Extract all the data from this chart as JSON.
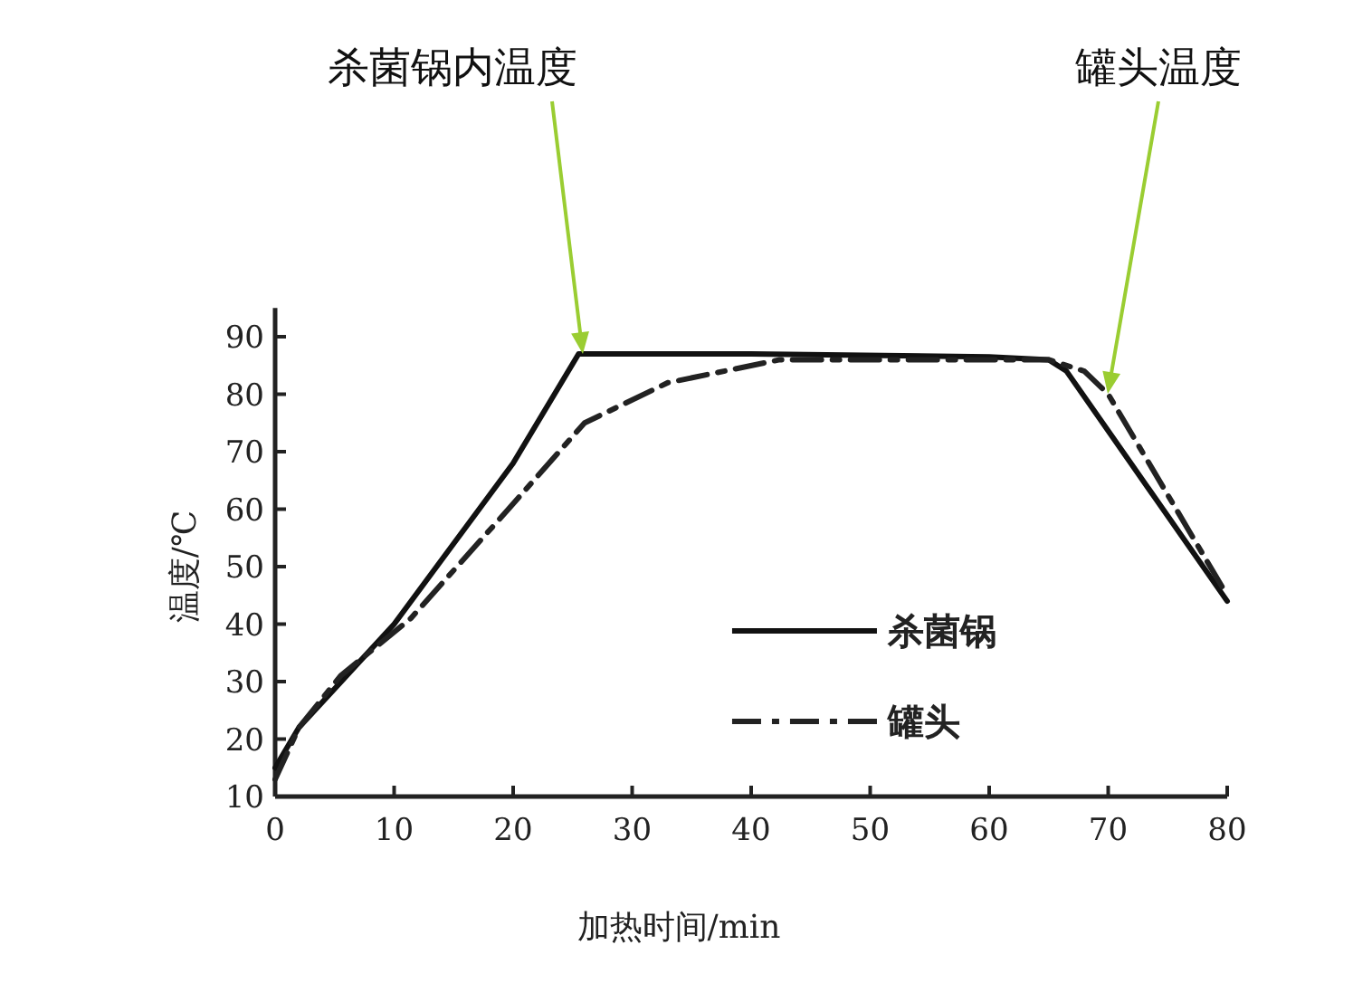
{
  "chart_data": {
    "type": "line",
    "xlabel": "加热时间/min",
    "ylabel": "温度/℃",
    "x": [
      0,
      2,
      10,
      20,
      25.5,
      40,
      60,
      65,
      66.5,
      80
    ],
    "xlim": [
      0,
      80
    ],
    "ylim": [
      10,
      95
    ],
    "xticks": [
      0,
      10,
      20,
      30,
      40,
      50,
      60,
      70,
      80
    ],
    "yticks": [
      10,
      20,
      30,
      40,
      50,
      60,
      70,
      80,
      90
    ],
    "legend": "right",
    "grid": false,
    "series": [
      {
        "name": "杀菌锅",
        "color": "#111111",
        "line_style": "solid",
        "values": [
          15,
          22,
          40,
          68,
          87,
          87,
          86.5,
          86,
          84,
          44
        ]
      },
      {
        "name": "罐头",
        "color": "#222222",
        "line_style": "dashed",
        "x": [
          0,
          2,
          5.5,
          11.4,
          19.6,
          26,
          33,
          42.4,
          65,
          68,
          70,
          80
        ],
        "values": [
          13,
          22,
          31,
          41,
          60,
          75,
          82,
          86,
          86,
          84,
          80,
          45
        ]
      }
    ],
    "annotations": [
      "杀菌锅内温度",
      "罐头温度"
    ]
  }
}
